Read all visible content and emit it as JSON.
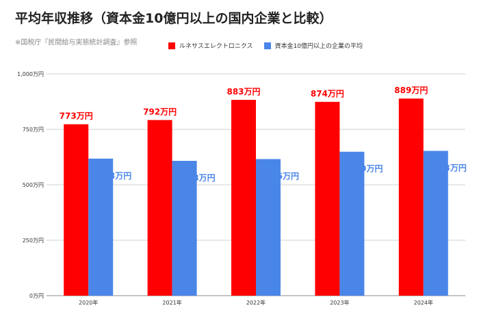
{
  "title": "平均年収推移（資本金10億円以上の国内企業と比較）",
  "source": "※国税庁『民間給与実態統計調査』参照",
  "chart_data": {
    "type": "bar",
    "categories": [
      "2020年",
      "2021年",
      "2022年",
      "2023年",
      "2024年"
    ],
    "series": [
      {
        "name": "ルネサスエレクトロニクス",
        "values": [
          773,
          792,
          883,
          874,
          889
        ],
        "color": "#ff0000",
        "labels": [
          "773万円",
          "792万円",
          "883万円",
          "874万円",
          "889万円"
        ]
      },
      {
        "name": "資本金10億円以上の企業の平均",
        "values": [
          618,
          608,
          616,
          649,
          653
        ],
        "color": "#4a86e8",
        "labels": [
          "618万円",
          "608万円",
          "616万円",
          "649万円",
          "653万円"
        ]
      }
    ],
    "ylim": [
      0,
      1000
    ],
    "yticks": [
      0,
      250,
      500,
      750,
      1000
    ],
    "ytick_labels": [
      "0万円",
      "250万円",
      "500万円",
      "750万円",
      "1,000万円"
    ],
    "grid": true,
    "legend_position": "top"
  }
}
